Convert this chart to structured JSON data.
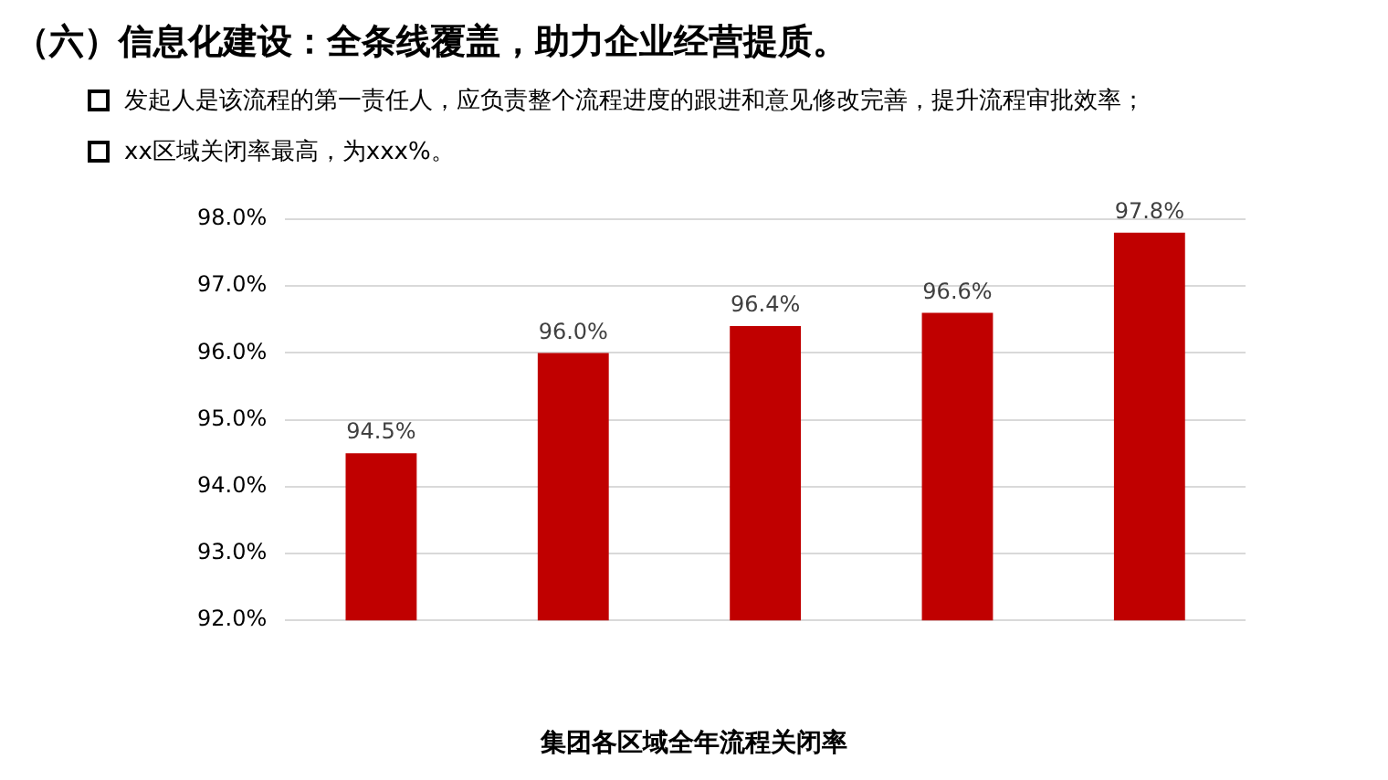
{
  "chart_data": {
    "type": "bar",
    "title": "（六）信息化建设：全条线覆盖，助力企业经营提质。",
    "annotations": [
      "发起人是该流程的第一责任人，应负责整个流程进度的跟进和意见修改完善，提升流程审批效率；",
      "xx区域关闭率最高，为xxx%。"
    ],
    "xlabel": "集团各区域全年流程关闭率",
    "categories": [
      null,
      null,
      null,
      null,
      null
    ],
    "values": [
      94.5,
      96.0,
      96.4,
      96.6,
      97.8
    ],
    "value_labels": [
      "94.5%",
      "96.0%",
      "96.4%",
      "96.6%",
      "97.8%"
    ],
    "color": "#c00000",
    "ylim": [
      92,
      98
    ],
    "yticks": [
      {
        "value": 92,
        "label": "92.0%"
      },
      {
        "value": 93,
        "label": "93.0%"
      },
      {
        "value": 94,
        "label": "94.0%"
      },
      {
        "value": 95,
        "label": "95.0%"
      },
      {
        "value": 96,
        "label": "96.0%"
      },
      {
        "value": 97,
        "label": "97.0%"
      },
      {
        "value": 98,
        "label": "98.0%"
      }
    ],
    "grid": "y"
  }
}
